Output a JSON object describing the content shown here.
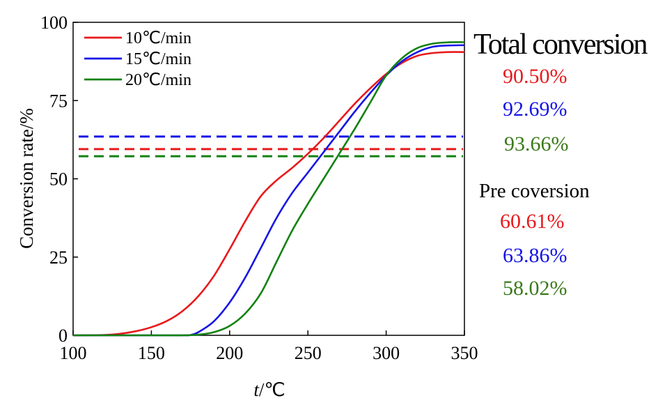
{
  "chart_data": {
    "type": "line",
    "xlabel_italic": "t",
    "xlabel_rest": "/℃",
    "ylabel": "Conversion rate/%",
    "xlim": [
      100,
      350
    ],
    "ylim": [
      0,
      100
    ],
    "xticks": [
      100,
      150,
      200,
      250,
      300,
      350
    ],
    "yticks": [
      0,
      25,
      50,
      75,
      100
    ],
    "legend_position": "top-left",
    "series": [
      {
        "name": "10℃/min",
        "color": "#e8191c",
        "x": [
          100,
          120,
          130,
          140,
          150,
          160,
          170,
          180,
          190,
          200,
          210,
          220,
          230,
          240,
          250,
          260,
          270,
          280,
          290,
          300,
          310,
          320,
          330,
          340,
          350
        ],
        "y": [
          0,
          0.1,
          0.5,
          1.3,
          2.6,
          4.6,
          7.8,
          12.5,
          19,
          27.5,
          36.5,
          44.5,
          49.5,
          53.5,
          58,
          63,
          68.5,
          74,
          79,
          83.5,
          87,
          89.3,
          90.2,
          90.5,
          90.5
        ]
      },
      {
        "name": "15℃/min",
        "color": "#1515e6",
        "x": [
          100,
          150,
          170,
          175,
          180,
          190,
          200,
          210,
          220,
          230,
          240,
          250,
          260,
          270,
          280,
          290,
          300,
          310,
          320,
          330,
          340,
          350
        ],
        "y": [
          0,
          0,
          0,
          0.1,
          1,
          4.5,
          10.5,
          18.5,
          28,
          37.5,
          45.5,
          52,
          58.5,
          65,
          71.5,
          77.5,
          83,
          87.5,
          90.5,
          92.2,
          92.6,
          92.7
        ]
      },
      {
        "name": "20℃/min",
        "color": "#128212",
        "x": [
          100,
          150,
          170,
          180,
          190,
          200,
          210,
          220,
          230,
          240,
          250,
          260,
          270,
          280,
          290,
          300,
          310,
          320,
          330,
          340,
          350
        ],
        "y": [
          0,
          0,
          0,
          0.2,
          1,
          3,
          7,
          13.5,
          23.5,
          33.5,
          42,
          50,
          58,
          66,
          74.5,
          83,
          88.5,
          91.8,
          93.2,
          93.6,
          93.66
        ]
      }
    ],
    "reference_lines": [
      {
        "y": 63.5,
        "color": "#1515e6",
        "style": "dashed"
      },
      {
        "y": 59.5,
        "color": "#e8191c",
        "style": "dashed"
      },
      {
        "y": 57.2,
        "color": "#128212",
        "style": "dashed"
      }
    ]
  },
  "annotations": {
    "total_title": "Total conversion",
    "total_values": [
      {
        "text": "90.50%",
        "color": "#e8191c"
      },
      {
        "text": "92.69%",
        "color": "#1515e6"
      },
      {
        "text": "93.66%",
        "color": "#3a7a1a"
      }
    ],
    "pre_title": "Pre coversion",
    "pre_values": [
      {
        "text": "60.61%",
        "color": "#e8191c"
      },
      {
        "text": "63.86%",
        "color": "#1515e6"
      },
      {
        "text": "58.02%",
        "color": "#3a7a1a"
      }
    ]
  }
}
